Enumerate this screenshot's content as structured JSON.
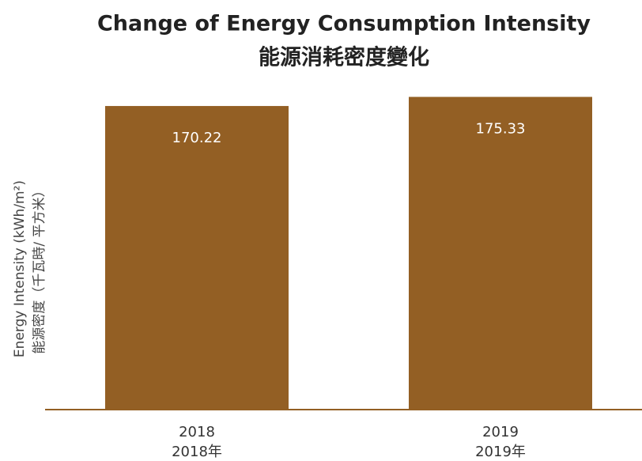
{
  "chart_data": {
    "type": "bar",
    "title": "Change of Energy Consumption Intensity",
    "subtitle": "能源消耗密度變化",
    "y_label": [
      "Energy Intensity (kWh/m²)",
      "能源密度（千瓦時/ 平方米）"
    ],
    "categories": [
      [
        "2018",
        "2018年"
      ],
      [
        "2019",
        "2019年"
      ]
    ],
    "values": [
      170.22,
      175.33
    ],
    "color": "#935f24",
    "ylim": [
      0,
      180
    ]
  }
}
